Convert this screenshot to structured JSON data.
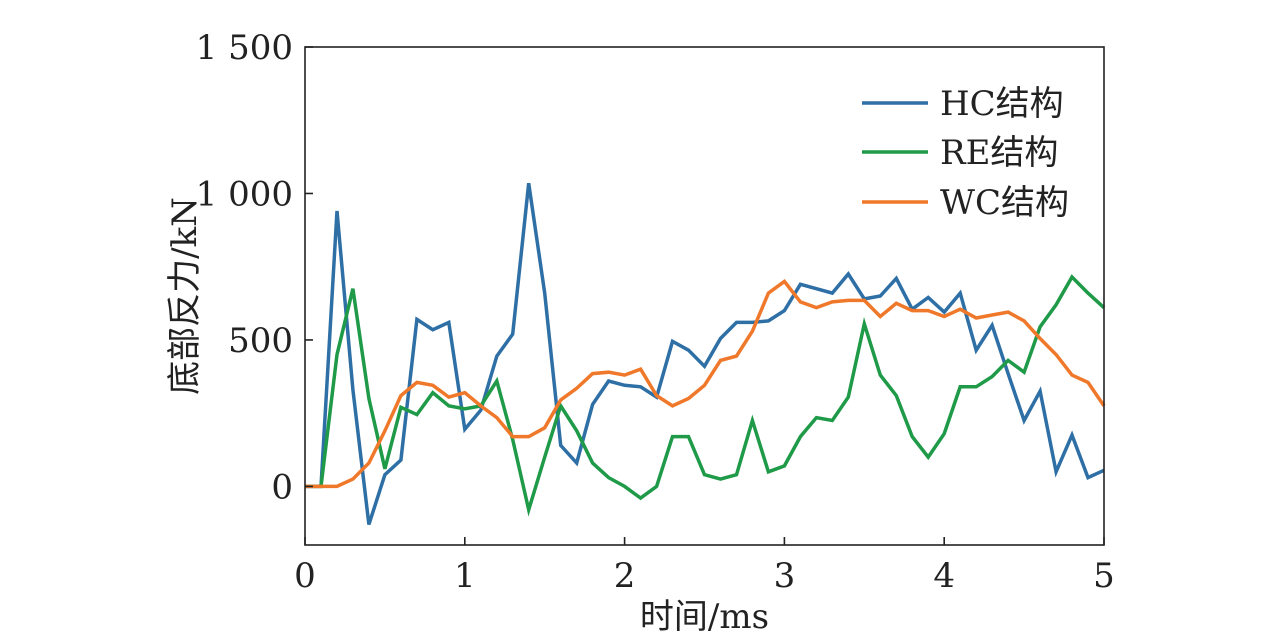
{
  "chart_data": {
    "type": "line",
    "xlabel": "时间/ms",
    "ylabel": "底部反力/kN",
    "xlim": [
      0,
      5
    ],
    "ylim": [
      -200,
      1500
    ],
    "xticks": [
      0,
      1,
      2,
      3,
      4,
      5
    ],
    "xtick_labels": [
      "0",
      "1",
      "2",
      "3",
      "4",
      "5"
    ],
    "yticks": [
      0,
      500,
      1000,
      1500
    ],
    "ytick_labels": [
      "0",
      "500",
      "1 000",
      "1 500"
    ],
    "grid": false,
    "legend_position": "top-right",
    "series": [
      {
        "name": "HC结构",
        "color": "#2e6fa6",
        "x": [
          0,
          0.1,
          0.2,
          0.3,
          0.4,
          0.5,
          0.6,
          0.7,
          0.8,
          0.9,
          1.0,
          1.1,
          1.2,
          1.3,
          1.4,
          1.5,
          1.6,
          1.7,
          1.8,
          1.9,
          2.0,
          2.1,
          2.2,
          2.3,
          2.4,
          2.5,
          2.6,
          2.7,
          2.8,
          2.9,
          3.0,
          3.1,
          3.2,
          3.3,
          3.4,
          3.5,
          3.6,
          3.7,
          3.8,
          3.9,
          4.0,
          4.1,
          4.2,
          4.3,
          4.4,
          4.5,
          4.6,
          4.7,
          4.8,
          4.9,
          5.0
        ],
        "y": [
          0,
          0,
          940,
          330,
          -130,
          40,
          90,
          570,
          535,
          560,
          195,
          260,
          445,
          520,
          1035,
          660,
          140,
          80,
          280,
          360,
          345,
          340,
          305,
          495,
          465,
          410,
          505,
          560,
          560,
          565,
          600,
          690,
          675,
          660,
          725,
          640,
          650,
          710,
          605,
          645,
          595,
          660,
          465,
          550,
          385,
          225,
          325,
          50,
          175,
          30,
          55
        ]
      },
      {
        "name": "RE结构",
        "color": "#1f9a48",
        "x": [
          0,
          0.1,
          0.2,
          0.3,
          0.4,
          0.5,
          0.6,
          0.7,
          0.8,
          0.9,
          1.0,
          1.1,
          1.2,
          1.3,
          1.4,
          1.5,
          1.6,
          1.7,
          1.8,
          1.9,
          2.0,
          2.1,
          2.2,
          2.3,
          2.4,
          2.5,
          2.6,
          2.7,
          2.8,
          2.9,
          3.0,
          3.1,
          3.2,
          3.3,
          3.4,
          3.5,
          3.6,
          3.7,
          3.8,
          3.9,
          4.0,
          4.1,
          4.2,
          4.3,
          4.4,
          4.5,
          4.6,
          4.7,
          4.8,
          4.9,
          5.0
        ],
        "y": [
          0,
          0,
          450,
          675,
          300,
          60,
          270,
          245,
          320,
          275,
          265,
          275,
          360,
          160,
          -80,
          100,
          275,
          190,
          80,
          30,
          0,
          -40,
          0,
          170,
          170,
          40,
          25,
          40,
          225,
          50,
          70,
          170,
          235,
          225,
          305,
          555,
          380,
          310,
          170,
          100,
          180,
          340,
          340,
          375,
          430,
          390,
          545,
          620,
          715,
          660,
          610
        ]
      },
      {
        "name": "WC结构",
        "color": "#f0782a",
        "x": [
          0,
          0.1,
          0.2,
          0.3,
          0.4,
          0.5,
          0.6,
          0.7,
          0.8,
          0.9,
          1.0,
          1.1,
          1.2,
          1.3,
          1.4,
          1.5,
          1.6,
          1.7,
          1.8,
          1.9,
          2.0,
          2.1,
          2.2,
          2.3,
          2.4,
          2.5,
          2.6,
          2.7,
          2.8,
          2.9,
          3.0,
          3.1,
          3.2,
          3.3,
          3.4,
          3.5,
          3.6,
          3.7,
          3.8,
          3.9,
          4.0,
          4.1,
          4.2,
          4.3,
          4.4,
          4.5,
          4.6,
          4.7,
          4.8,
          4.9,
          5.0
        ],
        "y": [
          0,
          0,
          0,
          25,
          80,
          190,
          310,
          355,
          345,
          305,
          320,
          275,
          235,
          170,
          170,
          200,
          295,
          335,
          385,
          390,
          380,
          400,
          310,
          275,
          300,
          345,
          430,
          445,
          530,
          660,
          700,
          630,
          610,
          630,
          635,
          635,
          580,
          625,
          600,
          600,
          580,
          605,
          575,
          585,
          595,
          565,
          505,
          450,
          380,
          355,
          275
        ]
      }
    ]
  }
}
